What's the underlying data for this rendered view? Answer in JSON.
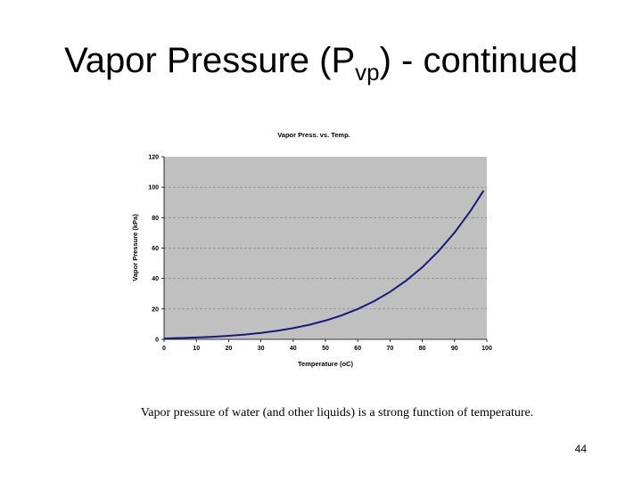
{
  "slide": {
    "title_main": "Vapor Pressure (P",
    "title_sub": "vp",
    "title_tail": ") - continued",
    "caption": "Vapor pressure of water (and other liquids) is a strong function of temperature.",
    "page_number": "44"
  },
  "chart_data": {
    "type": "line",
    "title": "Vapor Press. vs. Temp.",
    "xlabel": "Temperature (oC)",
    "ylabel": "Vapor Pressure (kPa)",
    "xlim": [
      0,
      100
    ],
    "ylim": [
      0,
      120
    ],
    "x_ticks": [
      0,
      10,
      20,
      30,
      40,
      50,
      60,
      70,
      80,
      90,
      100
    ],
    "y_ticks": [
      0,
      20,
      40,
      60,
      80,
      100,
      120
    ],
    "grid": "horizontal dashed",
    "legend": "none",
    "colors": {
      "line": "#1a1a7a",
      "plot_bg": "#c0c0c0",
      "grid": "#808080"
    },
    "series": [
      {
        "x": [
          0,
          5,
          10,
          15,
          20,
          25,
          30,
          35,
          40,
          45,
          50,
          55,
          60,
          65,
          70,
          75,
          80,
          85,
          90,
          95,
          99
        ],
        "values": [
          0.61,
          0.87,
          1.23,
          1.71,
          2.34,
          3.17,
          4.25,
          5.63,
          7.38,
          9.59,
          12.35,
          15.76,
          19.95,
          25.04,
          31.2,
          38.6,
          47.4,
          57.9,
          70.2,
          84.6,
          97.8
        ]
      }
    ]
  }
}
